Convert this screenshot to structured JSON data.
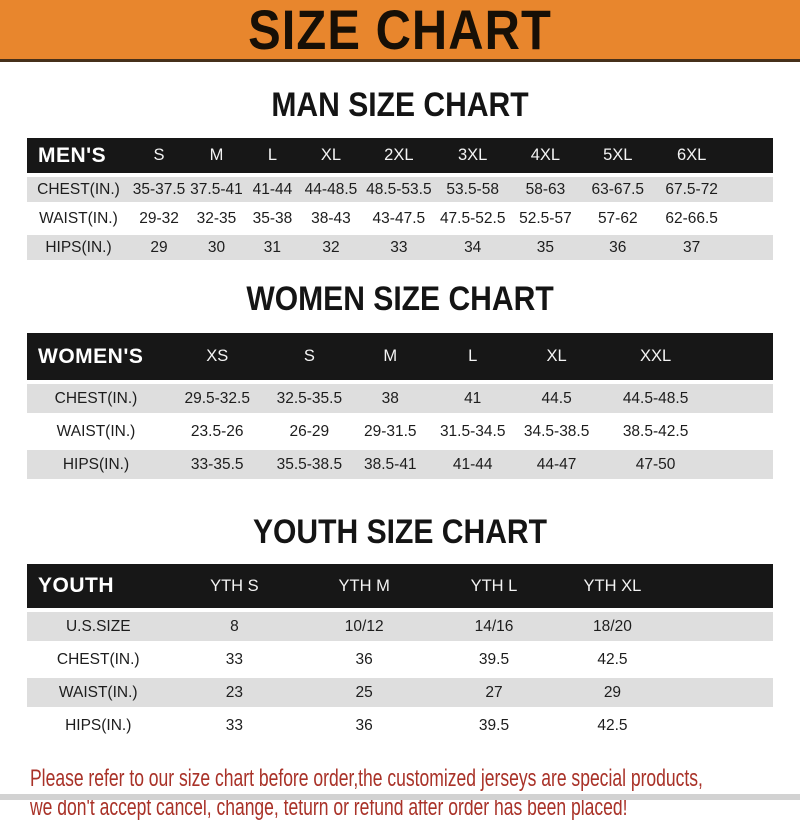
{
  "banner": {
    "title": "SIZE CHART"
  },
  "colors": {
    "banner_bg": "#E8862D",
    "header_bar_bg": "#171717",
    "row_stripe": "#DEDEDE",
    "footer_text": "#A93228"
  },
  "sections": [
    {
      "key": "men",
      "title": "MAN SIZE CHART",
      "header_label": "MEN'S",
      "columns": [
        "S",
        "M",
        "L",
        "XL",
        "2XL",
        "3XL",
        "4XL",
        "5XL",
        "6XL"
      ],
      "rows": [
        {
          "label": "CHEST(IN.)",
          "values": [
            "35-37.5",
            "37.5-41",
            "41-44",
            "44-48.5",
            "48.5-53.5",
            "53.5-58",
            "58-63",
            "63-67.5",
            "67.5-72"
          ]
        },
        {
          "label": "WAIST(IN.)",
          "values": [
            "29-32",
            "32-35",
            "35-38",
            "38-43",
            "43-47.5",
            "47.5-52.5",
            "52.5-57",
            "57-62",
            "62-66.5"
          ]
        },
        {
          "label": "HIPS(IN.)",
          "values": [
            "29",
            "30",
            "31",
            "32",
            "33",
            "34",
            "35",
            "36",
            "37"
          ]
        }
      ]
    },
    {
      "key": "women",
      "title": "WOMEN SIZE CHART",
      "header_label": "WOMEN'S",
      "columns": [
        "XS",
        "S",
        "M",
        "L",
        "XL",
        "XXL"
      ],
      "rows": [
        {
          "label": "CHEST(IN.)",
          "values": [
            "29.5-32.5",
            "32.5-35.5",
            "38",
            "41",
            "44.5",
            "44.5-48.5"
          ]
        },
        {
          "label": "WAIST(IN.)",
          "values": [
            "23.5-26",
            "26-29",
            "29-31.5",
            "31.5-34.5",
            "34.5-38.5",
            "38.5-42.5"
          ]
        },
        {
          "label": "HIPS(IN.)",
          "values": [
            "33-35.5",
            "35.5-38.5",
            "38.5-41",
            "41-44",
            "44-47",
            "47-50"
          ]
        }
      ]
    },
    {
      "key": "youth",
      "title": "YOUTH SIZE CHART",
      "header_label": "YOUTH",
      "columns": [
        "YTH S",
        "YTH M",
        "YTH L",
        "YTH XL"
      ],
      "rows": [
        {
          "label": "U.S.SIZE",
          "values": [
            "8",
            "10/12",
            "14/16",
            "18/20"
          ]
        },
        {
          "label": "CHEST(IN.)",
          "values": [
            "33",
            "36",
            "39.5",
            "42.5"
          ]
        },
        {
          "label": "WAIST(IN.)",
          "values": [
            "23",
            "25",
            "27",
            "29"
          ]
        },
        {
          "label": "HIPS(IN.)",
          "values": [
            "33",
            "36",
            "39.5",
            "42.5"
          ]
        }
      ]
    }
  ],
  "footer": {
    "line1": "Please refer to our size chart before order,the customized jerseys are special products,",
    "line2": "we don't accept cancel, change, teturn or refund after order has been placed!"
  }
}
